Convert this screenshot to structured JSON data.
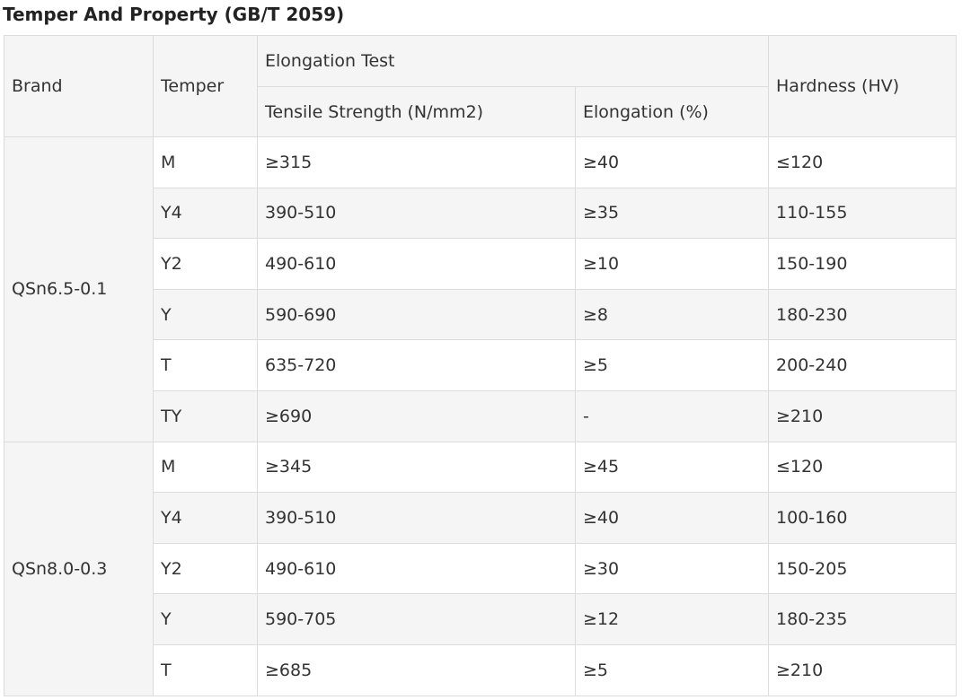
{
  "title": "Temper And Property (GB/T 2059)",
  "headers": {
    "brand": "Brand",
    "temper": "Temper",
    "elongation_test": "Elongation Test",
    "tensile_strength": "Tensile Strength (N/mm2)",
    "elongation": "Elongation (%)",
    "hardness": "Hardness (HV)"
  },
  "groups": [
    {
      "brand": "QSn6.5-0.1",
      "rows": [
        {
          "temper": "M",
          "tensile": "≥315",
          "elongation": "≥40",
          "hardness": "≤120"
        },
        {
          "temper": "Y4",
          "tensile": "390-510",
          "elongation": "≥35",
          "hardness": "110-155"
        },
        {
          "temper": "Y2",
          "tensile": "490-610",
          "elongation": "≥10",
          "hardness": "150-190"
        },
        {
          "temper": "Y",
          "tensile": "590-690",
          "elongation": "≥8",
          "hardness": "180-230"
        },
        {
          "temper": "T",
          "tensile": "635-720",
          "elongation": "≥5",
          "hardness": "200-240"
        },
        {
          "temper": "TY",
          "tensile": "≥690",
          "elongation": "-",
          "hardness": "≥210"
        }
      ]
    },
    {
      "brand": "QSn8.0-0.3",
      "rows": [
        {
          "temper": "M",
          "tensile": "≥345",
          "elongation": "≥45",
          "hardness": "≤120"
        },
        {
          "temper": "Y4",
          "tensile": "390-510",
          "elongation": "≥40",
          "hardness": "100-160"
        },
        {
          "temper": "Y2",
          "tensile": "490-610",
          "elongation": "≥30",
          "hardness": "150-205"
        },
        {
          "temper": "Y",
          "tensile": "590-705",
          "elongation": "≥12",
          "hardness": "180-235"
        },
        {
          "temper": "T",
          "tensile": "≥685",
          "elongation": "≥5",
          "hardness": "≥210"
        }
      ]
    }
  ]
}
